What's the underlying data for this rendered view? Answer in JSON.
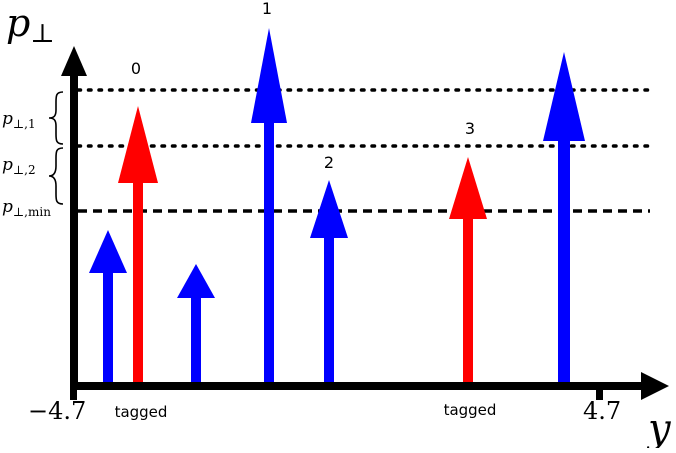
{
  "axes": {
    "y_axis_label_base": "p",
    "y_axis_label_sub": "⊥",
    "x_axis_label": "y",
    "x_min_label": "−4.7",
    "x_max_label": "4.7"
  },
  "thresholds": [
    {
      "id": "p1",
      "base": "p",
      "sub": "⊥,1",
      "style": "dotted"
    },
    {
      "id": "p2",
      "base": "p",
      "sub": "⊥,2",
      "style": "dotted"
    },
    {
      "id": "pmin",
      "base": "p",
      "sub": "⊥,min",
      "style": "dashed"
    }
  ],
  "particles": [
    {
      "color": "blue",
      "label": ""
    },
    {
      "color": "red",
      "label": "0",
      "tag": "tagged"
    },
    {
      "color": "blue",
      "label": ""
    },
    {
      "color": "blue",
      "label": "1"
    },
    {
      "color": "blue",
      "label": "2"
    },
    {
      "color": "red",
      "label": "3",
      "tag": "tagged"
    },
    {
      "color": "blue",
      "label": ""
    }
  ],
  "colors": {
    "blue": "#0000ff",
    "red": "#ff0000",
    "axis": "#000000"
  }
}
